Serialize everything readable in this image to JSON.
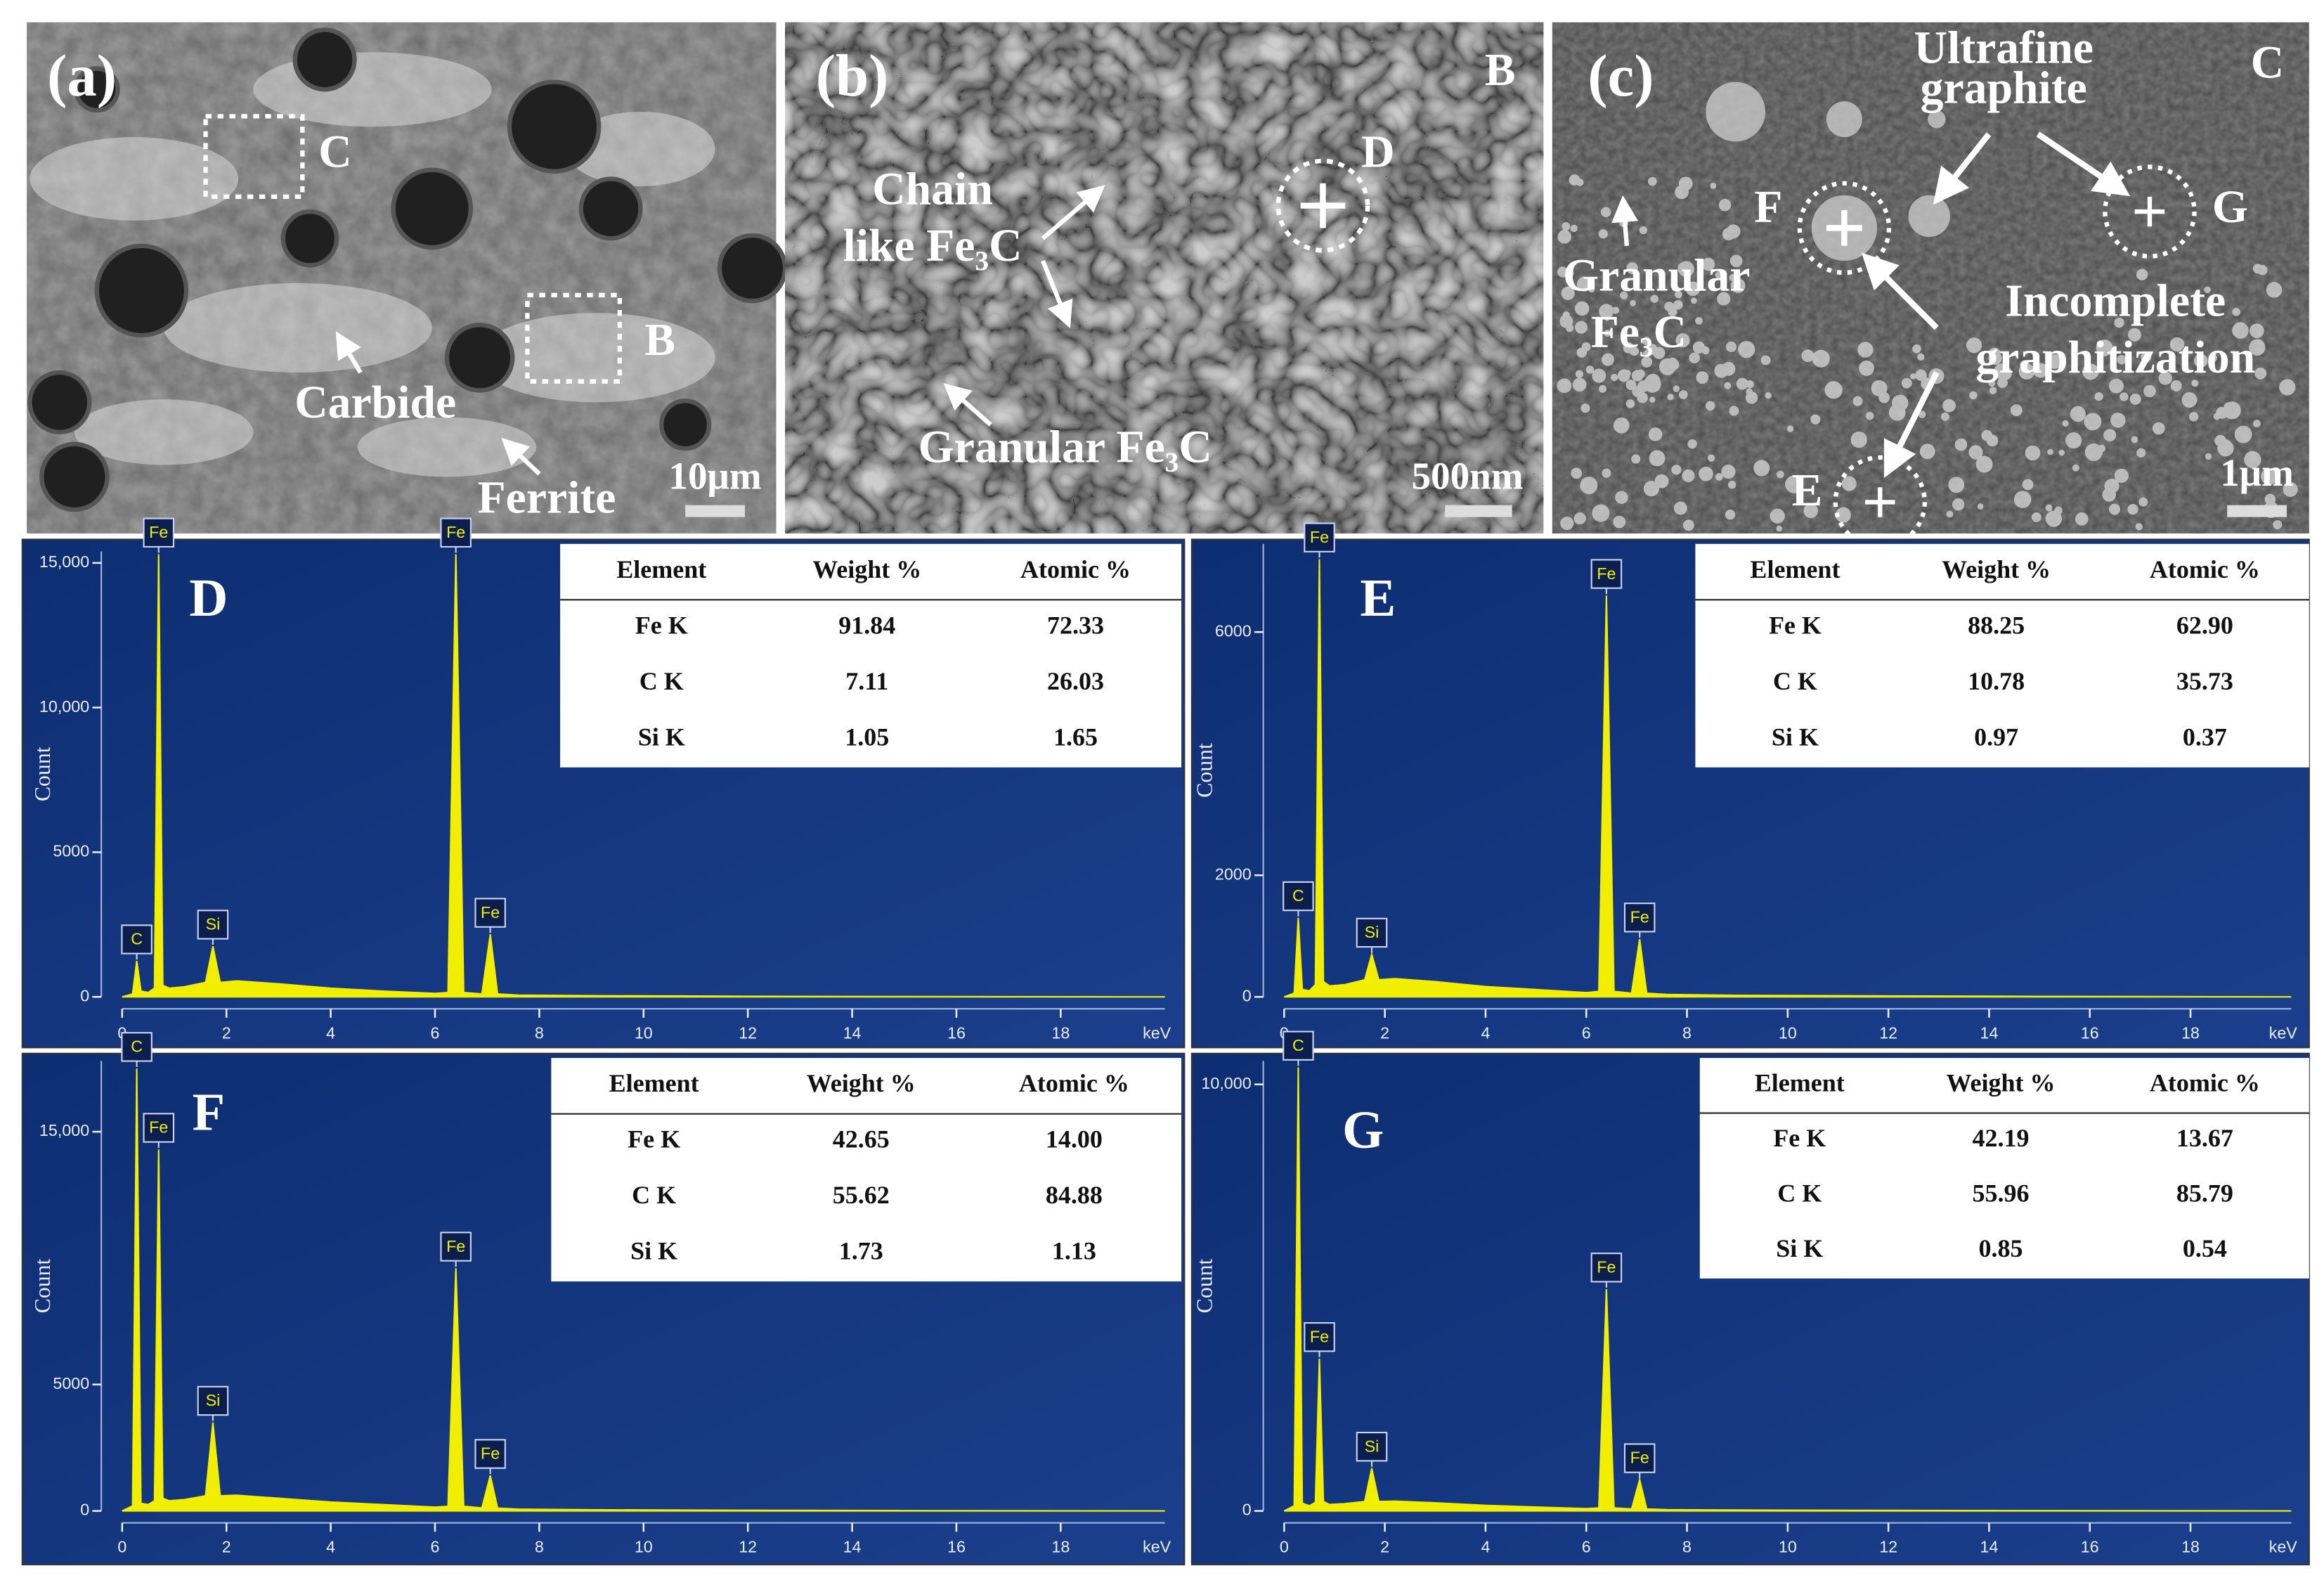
{
  "sem_panels": [
    {
      "label": "(a)",
      "annotations": [
        "C",
        "B",
        "Carbide",
        "Ferrite"
      ],
      "scale_bar": "10μm"
    },
    {
      "label": "(b)",
      "annotations": [
        "B",
        "D",
        "Chain",
        "like Fe₃C",
        "Granular Fe₃C"
      ],
      "scale_bar": "500nm"
    },
    {
      "label": "(c)",
      "annotations": [
        "C",
        "Ultrafine",
        "graphite",
        "F",
        "G",
        "Granular",
        "Fe₃C",
        "Incomplete",
        "graphitization",
        "E"
      ],
      "scale_bar": "1μm"
    }
  ],
  "chart_data": [
    {
      "type": "area",
      "panel_label": "D",
      "color": "#f2ee00",
      "y_label": "Count",
      "x_unit": "keV",
      "x": [
        0,
        0.2,
        0.28,
        0.36,
        0.5,
        0.62,
        0.7,
        0.78,
        0.9,
        1.2,
        1.6,
        1.74,
        1.88,
        2.2,
        3,
        4,
        5,
        6,
        6.25,
        6.4,
        6.55,
        6.9,
        7.06,
        7.2,
        7.6,
        9,
        12,
        15,
        20
      ],
      "values": [
        0,
        100,
        1240,
        200,
        150,
        300,
        15300,
        400,
        300,
        350,
        500,
        1750,
        500,
        550,
        450,
        300,
        200,
        120,
        150,
        15300,
        150,
        100,
        2160,
        100,
        60,
        40,
        20,
        10,
        0
      ],
      "point_labels": [
        null,
        null,
        "C",
        null,
        null,
        null,
        "Fe",
        null,
        null,
        null,
        null,
        "Si",
        null,
        null,
        null,
        null,
        null,
        null,
        null,
        "Fe",
        null,
        null,
        "Fe",
        null,
        null,
        null,
        null,
        null,
        null
      ],
      "xlim": [
        0,
        20
      ],
      "xticks": [
        0,
        2,
        4,
        6,
        8,
        10,
        12,
        14,
        16,
        18
      ],
      "ylim": [
        0,
        15400
      ],
      "yticks": [
        0,
        5000,
        {
          "value": 10000,
          "label": "10,000"
        },
        {
          "value": 15000,
          "label": "15,000"
        }
      ],
      "table": {
        "columns": [
          "Element",
          "Weight %",
          "Atomic %"
        ],
        "rows": [
          [
            "Fe K",
            "91.84",
            "72.33"
          ],
          [
            "C K",
            "7.11",
            "26.03"
          ],
          [
            "Si K",
            "1.05",
            "1.65"
          ]
        ]
      }
    },
    {
      "type": "area",
      "panel_label": "E",
      "color": "#f2ee00",
      "y_label": "Count",
      "x_unit": "keV",
      "x": [
        0,
        0.2,
        0.28,
        0.36,
        0.5,
        0.62,
        0.7,
        0.78,
        0.9,
        1.2,
        1.6,
        1.74,
        1.88,
        2.2,
        3,
        4,
        5,
        6,
        6.25,
        6.4,
        6.55,
        6.9,
        7.06,
        7.2,
        7.6,
        9,
        12,
        15,
        20
      ],
      "values": [
        0,
        60,
        1300,
        120,
        100,
        200,
        7200,
        250,
        180,
        200,
        280,
        700,
        280,
        300,
        250,
        170,
        120,
        70,
        90,
        6600,
        90,
        60,
        950,
        60,
        40,
        25,
        15,
        8,
        0
      ],
      "point_labels": [
        null,
        null,
        "C",
        null,
        null,
        null,
        "Fe",
        null,
        null,
        null,
        null,
        "Si",
        null,
        null,
        null,
        null,
        null,
        null,
        null,
        "Fe",
        null,
        null,
        "Fe",
        null,
        null,
        null,
        null,
        null,
        null
      ],
      "xlim": [
        0,
        20
      ],
      "xticks": [
        0,
        2,
        4,
        6,
        8,
        10,
        12,
        14,
        16,
        18
      ],
      "ylim": [
        0,
        7450
      ],
      "yticks": [
        0,
        2000,
        6000
      ],
      "table": {
        "columns": [
          "Element",
          "Weight %",
          "Atomic %"
        ],
        "rows": [
          [
            "Fe K",
            "88.25",
            "62.90"
          ],
          [
            "C K",
            "10.78",
            "35.73"
          ],
          [
            "Si K",
            "0.97",
            "0.37"
          ]
        ]
      }
    },
    {
      "type": "area",
      "panel_label": "F",
      "color": "#f2ee00",
      "y_label": "Count",
      "x_unit": "keV",
      "x": [
        0,
        0.2,
        0.28,
        0.36,
        0.5,
        0.62,
        0.7,
        0.78,
        0.9,
        1.2,
        1.6,
        1.74,
        1.88,
        2.2,
        3,
        4,
        5,
        6,
        6.25,
        6.4,
        6.55,
        6.9,
        7.06,
        7.2,
        7.6,
        9,
        12,
        15,
        20
      ],
      "values": [
        0,
        200,
        17500,
        300,
        250,
        400,
        14300,
        500,
        400,
        450,
        600,
        3500,
        600,
        620,
        500,
        350,
        250,
        150,
        180,
        9600,
        180,
        120,
        1400,
        110,
        70,
        45,
        25,
        12,
        0
      ],
      "point_labels": [
        null,
        null,
        "C",
        null,
        null,
        null,
        "Fe",
        null,
        null,
        null,
        null,
        "Si",
        null,
        null,
        null,
        null,
        null,
        null,
        null,
        "Fe",
        null,
        null,
        "Fe",
        null,
        null,
        null,
        null,
        null,
        null
      ],
      "xlim": [
        0,
        20
      ],
      "xticks": [
        0,
        2,
        4,
        6,
        8,
        10,
        12,
        14,
        16,
        18
      ],
      "ylim": [
        0,
        17800
      ],
      "yticks": [
        0,
        5000,
        {
          "value": 15000,
          "label": "15,000"
        }
      ],
      "table": {
        "columns": [
          "Element",
          "Weight %",
          "Atomic %"
        ],
        "rows": [
          [
            "Fe K",
            "42.65",
            "14.00"
          ],
          [
            "C K",
            "55.62",
            "84.88"
          ],
          [
            "Si K",
            "1.73",
            "1.13"
          ]
        ]
      }
    },
    {
      "type": "area",
      "panel_label": "G",
      "color": "#f2ee00",
      "y_label": "Count",
      "x_unit": "keV",
      "x": [
        0,
        0.2,
        0.28,
        0.36,
        0.5,
        0.62,
        0.7,
        0.78,
        0.9,
        1.2,
        1.6,
        1.74,
        1.88,
        2.2,
        3,
        4,
        5,
        6,
        6.25,
        6.4,
        6.55,
        6.9,
        7.06,
        7.2,
        7.6,
        9,
        12,
        15,
        20
      ],
      "values": [
        0,
        120,
        10400,
        180,
        120,
        200,
        3570,
        220,
        150,
        170,
        220,
        1000,
        220,
        230,
        190,
        130,
        90,
        55,
        70,
        5200,
        70,
        45,
        730,
        45,
        30,
        20,
        12,
        6,
        0
      ],
      "point_labels": [
        null,
        null,
        "C",
        null,
        null,
        null,
        "Fe",
        null,
        null,
        null,
        null,
        "Si",
        null,
        null,
        null,
        null,
        null,
        null,
        null,
        "Fe",
        null,
        null,
        "Fe",
        null,
        null,
        null,
        null,
        null,
        null
      ],
      "xlim": [
        0,
        20
      ],
      "xticks": [
        0,
        2,
        4,
        6,
        8,
        10,
        12,
        14,
        16,
        18
      ],
      "ylim": [
        0,
        10550
      ],
      "yticks": [
        0,
        {
          "value": 10000,
          "label": "10,000"
        }
      ],
      "table": {
        "columns": [
          "Element",
          "Weight %",
          "Atomic %"
        ],
        "rows": [
          [
            "Fe K",
            "42.19",
            "13.67"
          ],
          [
            "C K",
            "55.96",
            "85.79"
          ],
          [
            "Si K",
            "0.85",
            "0.54"
          ]
        ]
      }
    }
  ]
}
